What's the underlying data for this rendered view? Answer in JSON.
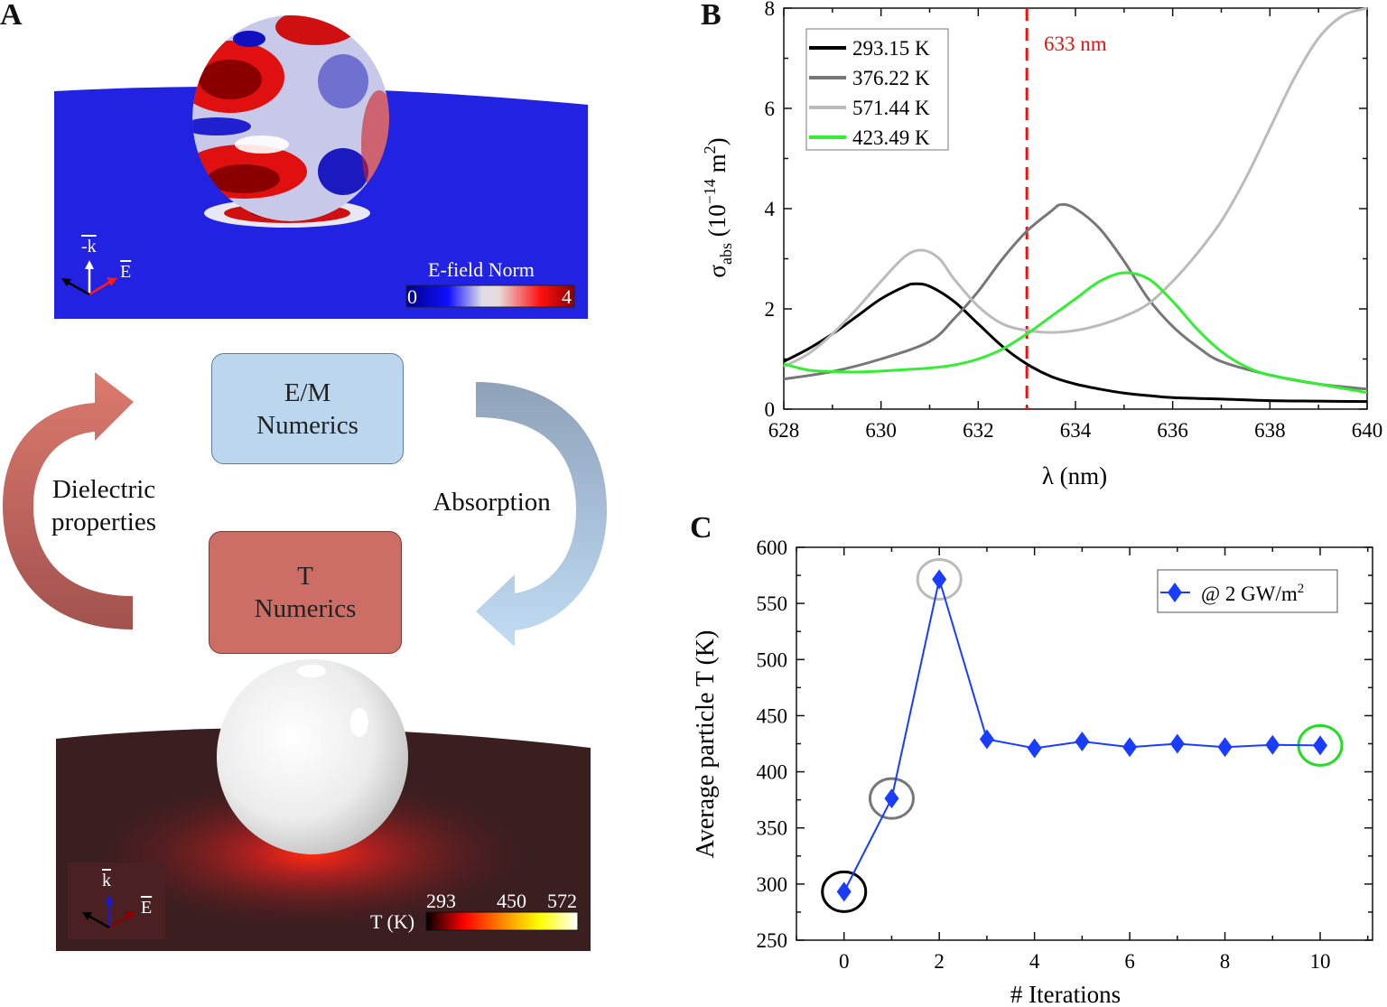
{
  "panel_labels": {
    "a": "A",
    "b": "B",
    "c": "C"
  },
  "panel_a": {
    "efield": {
      "colorbar_title": "E-field Norm",
      "colorbar_min": "0",
      "colorbar_max": "4",
      "axis_k": "-k",
      "axis_e": "E",
      "colors": {
        "slab": "#2020e0",
        "low": "#00008a",
        "high": "#8a0000"
      }
    },
    "cycle": {
      "em_box": {
        "line1": "E/M",
        "line2": "Numerics",
        "color": "#bcd6ee"
      },
      "t_box": {
        "line1": "T",
        "line2": "Numerics",
        "color": "#cc6e66"
      },
      "left_label": {
        "line1": "Dielectric",
        "line2": "properties"
      },
      "right_label": "Absorption"
    },
    "thermal": {
      "colorbar_title": "T (K)",
      "colorbar_ticks": [
        "293",
        "450",
        "572"
      ],
      "axis_k": "k",
      "axis_e": "E",
      "colors": {
        "slab": "#3a1e20",
        "hot": "#ff2a10"
      }
    }
  },
  "chart_data": [
    {
      "type": "line",
      "panel": "B",
      "xlabel": "λ (nm)",
      "ylabel_parts": [
        "σ",
        "abs",
        " (10",
        "−14",
        " m",
        "2",
        ")"
      ],
      "xlim": [
        628,
        640
      ],
      "ylim": [
        0,
        8
      ],
      "xticks": [
        628,
        630,
        632,
        634,
        636,
        638,
        640
      ],
      "yticks": [
        0,
        2,
        4,
        6,
        8
      ],
      "grid": false,
      "legend_position": "top-left",
      "vline": {
        "x": 633,
        "label": "633 nm",
        "color": "#ee1111"
      },
      "series": [
        {
          "name": "293.15 K",
          "color": "#000000",
          "x": [
            628,
            628.5,
            629,
            629.5,
            630,
            630.5,
            630.7,
            631,
            631.5,
            632,
            632.5,
            633,
            633.5,
            634,
            634.5,
            635,
            635.5,
            636,
            637,
            638,
            639,
            640
          ],
          "y": [
            0.95,
            1.2,
            1.5,
            1.85,
            2.2,
            2.45,
            2.5,
            2.45,
            2.15,
            1.7,
            1.25,
            0.9,
            0.65,
            0.5,
            0.4,
            0.32,
            0.27,
            0.23,
            0.2,
            0.17,
            0.16,
            0.15
          ]
        },
        {
          "name": "376.22 K",
          "color": "#777777",
          "x": [
            628,
            629,
            630,
            631,
            631.5,
            632,
            632.5,
            633,
            633.5,
            633.7,
            634,
            634.5,
            635,
            635.5,
            636,
            636.5,
            637,
            638,
            639,
            640
          ],
          "y": [
            0.6,
            0.75,
            1.0,
            1.35,
            1.8,
            2.35,
            3.0,
            3.55,
            3.95,
            4.08,
            4.0,
            3.6,
            2.95,
            2.2,
            1.65,
            1.25,
            0.95,
            0.68,
            0.5,
            0.4
          ]
        },
        {
          "name": "571.44 K",
          "color": "#bbbbbb",
          "x": [
            628,
            628.5,
            629,
            629.5,
            630,
            630.5,
            630.85,
            631.2,
            631.5,
            632,
            632.5,
            633,
            633.5,
            634,
            634.5,
            635,
            635.5,
            636,
            636.5,
            637,
            637.5,
            638,
            638.5,
            639,
            639.5,
            640
          ],
          "y": [
            0.85,
            1.1,
            1.5,
            2.0,
            2.55,
            3.05,
            3.17,
            3.0,
            2.6,
            2.05,
            1.7,
            1.57,
            1.53,
            1.57,
            1.68,
            1.85,
            2.1,
            2.55,
            3.1,
            3.75,
            4.6,
            5.6,
            6.6,
            7.4,
            7.85,
            8.0
          ]
        },
        {
          "name": "423.49 K",
          "color": "#33ee33",
          "x": [
            628,
            628.5,
            629,
            629.5,
            630,
            631,
            631.5,
            632,
            632.5,
            633,
            633.5,
            634,
            634.5,
            635,
            635.5,
            636,
            636.5,
            637,
            637.5,
            638,
            639,
            640
          ],
          "y": [
            0.9,
            0.78,
            0.75,
            0.74,
            0.76,
            0.82,
            0.88,
            1.0,
            1.2,
            1.5,
            1.85,
            2.2,
            2.55,
            2.72,
            2.6,
            2.15,
            1.6,
            1.15,
            0.85,
            0.68,
            0.5,
            0.33
          ]
        }
      ]
    },
    {
      "type": "line",
      "panel": "C",
      "xlabel": "# Iterations",
      "ylabel": "Average particle T (K)",
      "xlim": [
        -1,
        11.1
      ],
      "ylim": [
        250,
        600
      ],
      "xticks": [
        0,
        2,
        4,
        6,
        8,
        10
      ],
      "yticks": [
        250,
        300,
        350,
        400,
        450,
        500,
        550,
        600
      ],
      "grid": false,
      "legend_position": "top-right",
      "series": [
        {
          "name": "@ 2 GW/m",
          "name_sup": "2",
          "color": "#1a3cff",
          "marker": "diamond",
          "x": [
            0,
            1,
            2,
            3,
            4,
            5,
            6,
            7,
            8,
            9,
            10
          ],
          "y": [
            293.15,
            376.22,
            571.44,
            429,
            421,
            427,
            422,
            425,
            422,
            424,
            423.49
          ]
        }
      ],
      "highlights": [
        {
          "x": 0,
          "y": 293.15,
          "color": "#000000"
        },
        {
          "x": 1,
          "y": 376.22,
          "color": "#777777"
        },
        {
          "x": 2,
          "y": 571.44,
          "color": "#bbbbbb"
        },
        {
          "x": 10,
          "y": 423.49,
          "color": "#22dd22"
        }
      ]
    }
  ]
}
